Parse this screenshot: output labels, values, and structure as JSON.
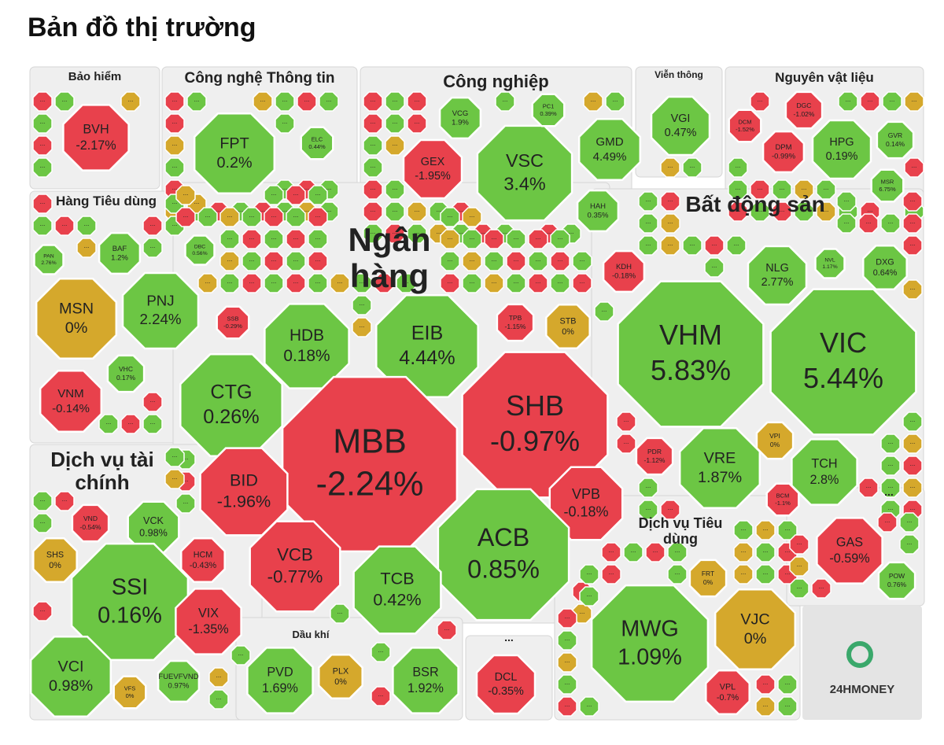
{
  "header": {
    "title": "Bản đồ thị trường"
  },
  "ellipsis": "...",
  "logo": "24HMONEY",
  "colors": {
    "up": "#6cc644",
    "down": "#e8414c",
    "flat": "#d5a82c"
  },
  "sectors": [
    {
      "name": "Bảo hiểm",
      "stocks": [
        {
          "ticker": "BVH",
          "change": "-2.17%"
        }
      ]
    },
    {
      "name": "Công nghệ Thông tin",
      "stocks": [
        {
          "ticker": "FPT",
          "change": "0.2%"
        },
        {
          "ticker": "ELC",
          "change": "0.44%"
        }
      ]
    },
    {
      "name": "Công nghiệp",
      "stocks": [
        {
          "ticker": "VCG",
          "change": "1.9%"
        },
        {
          "ticker": "GEX",
          "change": "-1.95%"
        },
        {
          "ticker": "VSC",
          "change": "3.4%"
        },
        {
          "ticker": "PC1",
          "change": "0.39%"
        },
        {
          "ticker": "GMD",
          "change": "4.49%"
        },
        {
          "ticker": "HAH",
          "change": "0.35%"
        }
      ]
    },
    {
      "name": "Viễn thông",
      "stocks": [
        {
          "ticker": "VGI",
          "change": "0.47%"
        }
      ]
    },
    {
      "name": "Nguyên vật liệu",
      "stocks": [
        {
          "ticker": "DCM",
          "change": "-1.52%"
        },
        {
          "ticker": "DGC",
          "change": "-1.02%"
        },
        {
          "ticker": "DPM",
          "change": "-0.99%"
        },
        {
          "ticker": "HPG",
          "change": "0.19%"
        },
        {
          "ticker": "GVR",
          "change": "0.14%"
        },
        {
          "ticker": "MSR",
          "change": "6.75%"
        }
      ]
    },
    {
      "name": "Hàng Tiêu dùng",
      "stocks": [
        {
          "ticker": "BAF",
          "change": "1.2%"
        },
        {
          "ticker": "DBC",
          "change": "0.56%"
        },
        {
          "ticker": "PAN",
          "change": "2.76%"
        },
        {
          "ticker": "MSN",
          "change": "0%"
        },
        {
          "ticker": "PNJ",
          "change": "2.24%"
        },
        {
          "ticker": "VHC",
          "change": "0.17%"
        },
        {
          "ticker": "VNM",
          "change": "-0.14%"
        }
      ]
    },
    {
      "name": "Ngân hàng",
      "stocks": [
        {
          "ticker": "SSB",
          "change": "-0.29%"
        },
        {
          "ticker": "HDB",
          "change": "0.18%"
        },
        {
          "ticker": "EIB",
          "change": "4.44%"
        },
        {
          "ticker": "TPB",
          "change": "-1.15%"
        },
        {
          "ticker": "STB",
          "change": "0%"
        },
        {
          "ticker": "CTG",
          "change": "0.26%"
        },
        {
          "ticker": "MBB",
          "change": "-2.24%"
        },
        {
          "ticker": "SHB",
          "change": "-0.97%"
        },
        {
          "ticker": "BID",
          "change": "-1.96%"
        },
        {
          "ticker": "VPB",
          "change": "-0.18%"
        },
        {
          "ticker": "VCB",
          "change": "-0.77%"
        },
        {
          "ticker": "ACB",
          "change": "0.85%"
        },
        {
          "ticker": "TCB",
          "change": "0.42%"
        }
      ]
    },
    {
      "name": "Bất động sản",
      "stocks": [
        {
          "ticker": "KDH",
          "change": "-0.18%"
        },
        {
          "ticker": "NLG",
          "change": "2.77%"
        },
        {
          "ticker": "NVL",
          "change": "1.17%"
        },
        {
          "ticker": "DXG",
          "change": "0.64%"
        },
        {
          "ticker": "VHM",
          "change": "5.83%"
        },
        {
          "ticker": "VIC",
          "change": "5.44%"
        },
        {
          "ticker": "VPI",
          "change": "0%"
        },
        {
          "ticker": "PDR",
          "change": "-1.12%"
        },
        {
          "ticker": "VRE",
          "change": "1.87%"
        },
        {
          "ticker": "TCH",
          "change": "2.8%"
        },
        {
          "ticker": "BCM",
          "change": "-1.1%"
        }
      ]
    },
    {
      "name": "Dịch vụ tài chính",
      "stocks": [
        {
          "ticker": "VND",
          "change": "-0.54%"
        },
        {
          "ticker": "VCK",
          "change": "0.98%"
        },
        {
          "ticker": "SHS",
          "change": "0%"
        },
        {
          "ticker": "SSI",
          "change": "0.16%"
        },
        {
          "ticker": "HCM",
          "change": "-0.43%"
        },
        {
          "ticker": "VIX",
          "change": "-1.35%"
        },
        {
          "ticker": "VCI",
          "change": "0.98%"
        },
        {
          "ticker": "VFS",
          "change": "0%"
        },
        {
          "ticker": "FUEVFVND",
          "change": "0.97%"
        }
      ]
    },
    {
      "name": "Dầu khí",
      "stocks": [
        {
          "ticker": "PVD",
          "change": "1.69%"
        },
        {
          "ticker": "PLX",
          "change": "0%"
        },
        {
          "ticker": "BSR",
          "change": "1.92%"
        }
      ]
    },
    {
      "name": "...",
      "stocks": [
        {
          "ticker": "DCL",
          "change": "-0.35%"
        }
      ]
    },
    {
      "name": "Dịch vụ Tiêu dùng",
      "stocks": [
        {
          "ticker": "FRT",
          "change": "0%"
        },
        {
          "ticker": "MWG",
          "change": "1.09%"
        },
        {
          "ticker": "VJC",
          "change": "0%"
        },
        {
          "ticker": "VPL",
          "change": "-0.7%"
        }
      ]
    },
    {
      "name": "...",
      "stocks": [
        {
          "ticker": "GAS",
          "change": "-0.59%"
        },
        {
          "ticker": "POW",
          "change": "0.76%"
        }
      ]
    }
  ]
}
